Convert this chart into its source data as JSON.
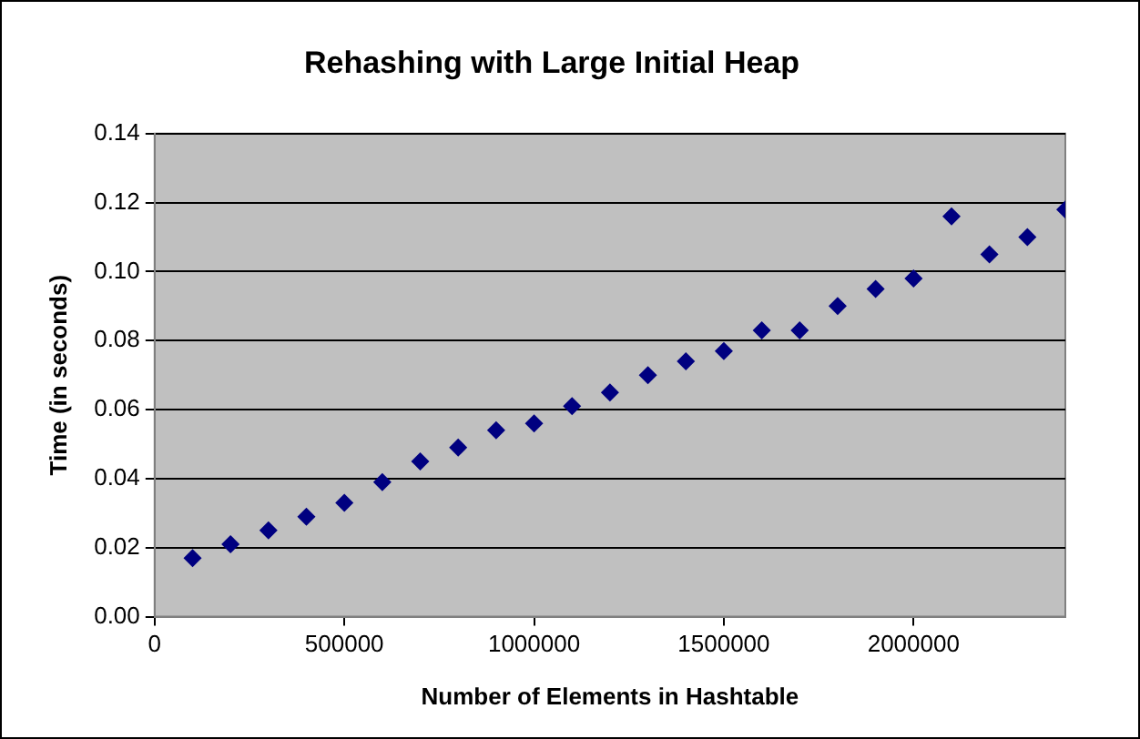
{
  "chart_data": {
    "type": "scatter",
    "title": "Rehashing with Large Initial Heap",
    "xlabel": "Number of Elements in Hashtable",
    "ylabel": "Time (in seconds)",
    "x": [
      100000,
      200000,
      300000,
      400000,
      500000,
      600000,
      700000,
      800000,
      900000,
      1000000,
      1100000,
      1200000,
      1300000,
      1400000,
      1500000,
      1600000,
      1700000,
      1800000,
      1900000,
      2000000,
      2100000,
      2200000,
      2300000,
      2400000
    ],
    "series": [
      {
        "color": "#000080",
        "values": [
          0.017,
          0.021,
          0.025,
          0.029,
          0.033,
          0.039,
          0.045,
          0.049,
          0.054,
          0.056,
          0.061,
          0.065,
          0.07,
          0.074,
          0.077,
          0.083,
          0.083,
          0.09,
          0.095,
          0.098,
          0.116,
          0.105,
          0.11,
          0.118
        ]
      }
    ],
    "xlim": [
      0,
      2400000
    ],
    "xticks": [
      0,
      500000,
      1000000,
      1500000,
      2000000
    ],
    "ylim": [
      0,
      0.14
    ],
    "yticks": [
      {
        "value": 0,
        "label": "0.00"
      },
      {
        "value": 0.02,
        "label": "0.02"
      },
      {
        "value": 0.04,
        "label": "0.04"
      },
      {
        "value": 0.06,
        "label": "0.06"
      },
      {
        "value": 0.08,
        "label": "0.08"
      },
      {
        "value": 0.1,
        "label": "0.10"
      },
      {
        "value": 0.12,
        "label": "0.12"
      },
      {
        "value": 0.14,
        "label": "0.14"
      }
    ],
    "grid": "y",
    "legend": false,
    "marker": "diamond"
  }
}
